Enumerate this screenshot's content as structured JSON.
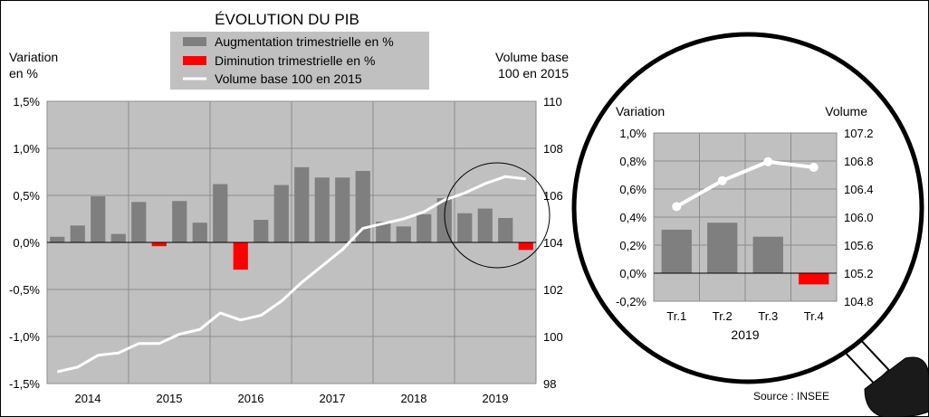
{
  "chart_data": [
    {
      "type": "bar",
      "title": "ÉVOLUTION DU PIB",
      "ylabel_left": [
        "Variation",
        "en %"
      ],
      "ylabel_right": [
        "Volume base",
        "100 en 2015"
      ],
      "years": [
        "2014",
        "2015",
        "2016",
        "2017",
        "2018",
        "2019"
      ],
      "left_ylim": [
        -1.5,
        1.5
      ],
      "left_ticks": [
        "1,5%",
        "1,0%",
        "0,5%",
        "0,0%",
        "-0,5%",
        "-1,0%",
        "-1,5%"
      ],
      "right_ylim": [
        98,
        110
      ],
      "right_ticks": [
        "110",
        "108",
        "106",
        "104",
        "102",
        "100",
        "98"
      ],
      "legend": [
        {
          "label": "Augmentation trimestrielle en %",
          "color": "#7f7f7f"
        },
        {
          "label": "Diminution trimestrielle en %",
          "color": "#ff0000"
        },
        {
          "label": "Volume base 100 en  2015",
          "color": "#ffffff"
        }
      ],
      "series": [
        {
          "name": "Augmentation trimestrielle en %",
          "values": [
            0.06,
            0.18,
            0.49,
            0.09,
            0.43,
            null,
            0.44,
            0.21,
            0.62,
            null,
            0.24,
            0.61,
            0.8,
            0.69,
            0.69,
            0.76,
            0.22,
            0.17,
            0.3,
            0.47,
            0.31,
            0.36,
            0.26,
            null
          ]
        },
        {
          "name": "Diminution trimestrielle en %",
          "values": [
            null,
            null,
            null,
            null,
            null,
            -0.04,
            null,
            null,
            null,
            -0.29,
            null,
            null,
            null,
            null,
            null,
            null,
            null,
            null,
            null,
            null,
            null,
            null,
            null,
            -0.08
          ]
        },
        {
          "name": "Volume base 100 en  2015",
          "values": [
            98.5,
            98.7,
            99.2,
            99.3,
            99.7,
            99.7,
            100.1,
            100.3,
            101.0,
            100.7,
            100.9,
            101.5,
            102.3,
            103.0,
            103.7,
            104.6,
            104.8,
            105.0,
            105.3,
            105.8,
            106.1,
            106.5,
            106.8,
            106.7
          ]
        }
      ]
    },
    {
      "type": "bar",
      "ylabel_left": "Variation",
      "ylabel_right": "Volume",
      "categories": [
        "Tr.1",
        "Tr.2",
        "Tr.3",
        "Tr.4"
      ],
      "year": "2019",
      "left_ylim": [
        -0.2,
        1.0
      ],
      "left_ticks": [
        "1,0%",
        "0,8%",
        "0,6%",
        "0,4%",
        "0,2%",
        "0,0%",
        "-0,2%"
      ],
      "right_ylim": [
        104.8,
        107.2
      ],
      "right_ticks": [
        "107.2",
        "106.8",
        "106.4",
        "106.0",
        "105.6",
        "105.2",
        "104.8"
      ],
      "series": [
        {
          "name": "Augmentation trimestrielle en %",
          "values": [
            0.31,
            0.36,
            0.26,
            null
          ]
        },
        {
          "name": "Diminution trimestrielle en %",
          "values": [
            null,
            null,
            null,
            -0.08
          ]
        },
        {
          "name": "Volume base 100 en  2015",
          "values": [
            106.15,
            106.52,
            106.79,
            106.71
          ]
        }
      ]
    }
  ],
  "source": "Source : INSEE",
  "colors": {
    "plot_bg": "#c0c0c0",
    "bar_up": "#7f7f7f",
    "bar_down": "#ff0000",
    "volume_line": "#ffffff",
    "gridline": "#8c8c8c"
  }
}
